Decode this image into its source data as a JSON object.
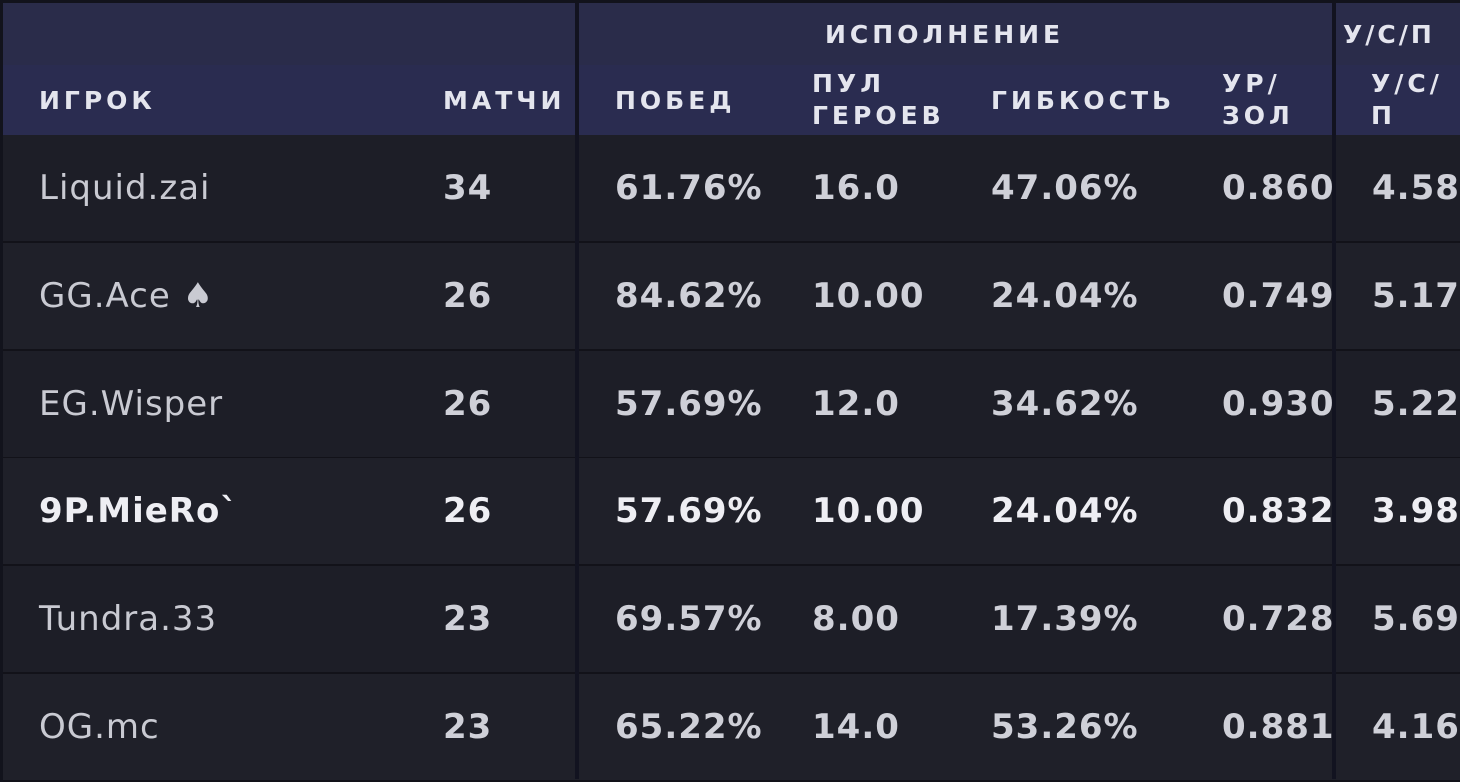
{
  "header": {
    "group_performance": "ИСПОЛНЕНИЕ",
    "group_kda": "У/С/П",
    "columns": {
      "player": "ИГРОК",
      "matches": "МАТЧИ",
      "wins": "ПОБЕД",
      "hero_pool_1": "ПУЛ",
      "hero_pool_2": "ГЕРОЕВ",
      "flexibility": "ГИБКОСТЬ",
      "lvl_gold_1": "УР/",
      "lvl_gold_2": "ЗОЛ",
      "kda_1": "У/С/",
      "kda_2": "П"
    }
  },
  "rows": [
    {
      "player": "Liquid.zai",
      "matches": "34",
      "wins": "61.76%",
      "hero_pool": "16.0",
      "flexibility": "47.06%",
      "lvl_gold": "0.860",
      "kda": "4.58",
      "highlighted": false
    },
    {
      "player": "GG.Ace ♠",
      "matches": "26",
      "wins": "84.62%",
      "hero_pool": "10.00",
      "flexibility": "24.04%",
      "lvl_gold": "0.749",
      "kda": "5.17",
      "highlighted": false
    },
    {
      "player": "EG.Wisper",
      "matches": "26",
      "wins": "57.69%",
      "hero_pool": "12.0",
      "flexibility": "34.62%",
      "lvl_gold": "0.930",
      "kda": "5.22",
      "highlighted": false
    },
    {
      "player": "9P.MieRo`",
      "matches": "26",
      "wins": "57.69%",
      "hero_pool": "10.00",
      "flexibility": "24.04%",
      "lvl_gold": "0.832",
      "kda": "3.98",
      "highlighted": true
    },
    {
      "player": "Tundra.33",
      "matches": "23",
      "wins": "69.57%",
      "hero_pool": "8.00",
      "flexibility": "17.39%",
      "lvl_gold": "0.728",
      "kda": "5.69",
      "highlighted": false
    },
    {
      "player": "OG.mc",
      "matches": "23",
      "wins": "65.22%",
      "hero_pool": "14.0",
      "flexibility": "53.26%",
      "lvl_gold": "0.881",
      "kda": "4.16",
      "highlighted": false
    }
  ],
  "colors": {
    "header_bg": "#2a2c4a",
    "row_bg": "#1d1e27",
    "text": "#c9cad2"
  }
}
